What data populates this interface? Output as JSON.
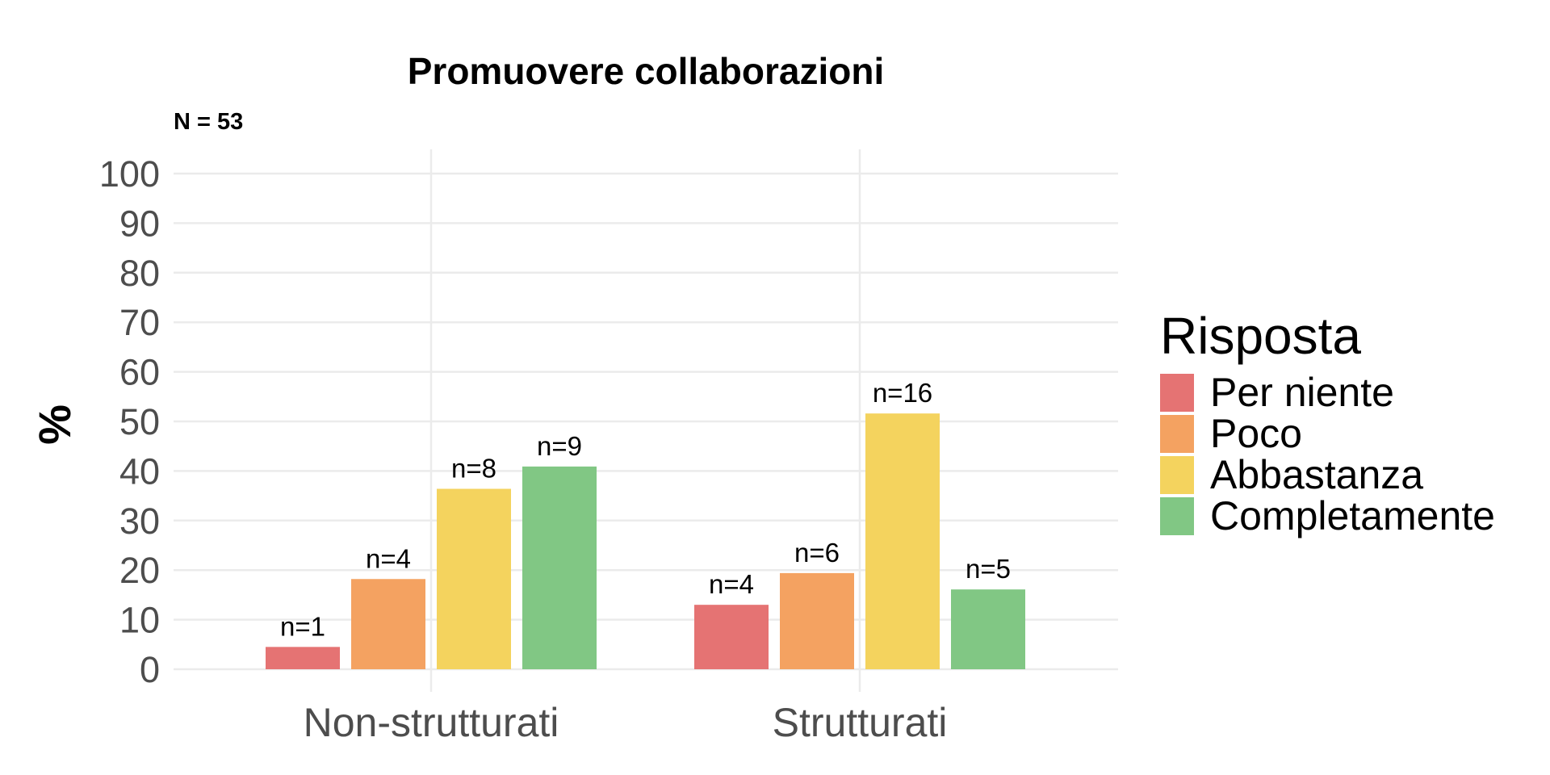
{
  "chart_data": {
    "type": "bar",
    "title": "Promuovere collaborazioni",
    "subtitle": "N = 53",
    "xlabel": "",
    "ylabel": "%",
    "ylim": [
      0,
      100
    ],
    "yticks": [
      "0",
      "10",
      "20",
      "30",
      "40",
      "50",
      "60",
      "70",
      "80",
      "90",
      "100"
    ],
    "grid": true,
    "categories": [
      "Non-strutturati",
      "Strutturati"
    ],
    "series": [
      {
        "name": "Per niente",
        "color": "#e57373",
        "values": [
          4.5,
          13
        ],
        "labels": [
          "n=1",
          "n=4"
        ]
      },
      {
        "name": "Poco",
        "color": "#f4a261",
        "values": [
          18.2,
          19.4
        ],
        "labels": [
          "n=4",
          "n=6"
        ]
      },
      {
        "name": "Abbastanza",
        "color": "#f4d35e",
        "values": [
          36.4,
          51.6
        ],
        "labels": [
          "n=8",
          "n=16"
        ]
      },
      {
        "name": "Completamente",
        "color": "#81c784",
        "values": [
          40.9,
          16.1
        ],
        "labels": [
          "n=9",
          "n=5"
        ]
      }
    ],
    "legend": {
      "title": "Risposta",
      "position": "right"
    }
  }
}
